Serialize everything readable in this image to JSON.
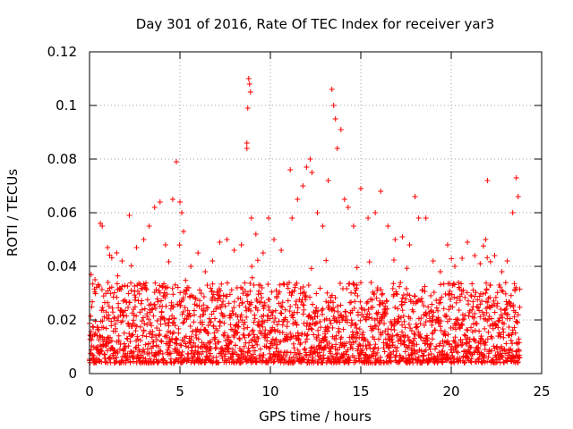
{
  "chart_data": {
    "type": "scatter",
    "title": "Day 301 of 2016, Rate Of TEC Index for receiver yar3",
    "xlabel": "GPS time / hours",
    "ylabel": "ROTI / TECUs",
    "xlim": [
      0,
      25
    ],
    "ylim": [
      0,
      0.12
    ],
    "xticks": [
      0,
      5,
      10,
      15,
      20,
      25
    ],
    "xtick_labels": [
      "0",
      "5",
      "10",
      "15",
      "20",
      "25"
    ],
    "yticks": [
      0,
      0.02,
      0.04,
      0.06,
      0.08,
      0.1,
      0.12
    ],
    "ytick_labels": [
      "0",
      "0.02",
      "0.04",
      "0.06",
      "0.08",
      "0.1",
      "0.12"
    ],
    "grid": true,
    "marker": "+",
    "color": "#ff0000",
    "series": [
      {
        "name": "ROTI",
        "note": "dense field of points mostly 0.003-0.035 TECUs across 0-23.8 h; notable excursions listed",
        "points": [
          [
            0.3,
            0.035
          ],
          [
            0.6,
            0.056
          ],
          [
            0.7,
            0.055
          ],
          [
            1.0,
            0.047
          ],
          [
            1.5,
            0.045
          ],
          [
            1.8,
            0.042
          ],
          [
            2.2,
            0.059
          ],
          [
            2.6,
            0.047
          ],
          [
            3.0,
            0.05
          ],
          [
            3.3,
            0.055
          ],
          [
            3.6,
            0.062
          ],
          [
            3.9,
            0.064
          ],
          [
            4.2,
            0.048
          ],
          [
            4.6,
            0.065
          ],
          [
            4.8,
            0.079
          ],
          [
            5.0,
            0.064
          ],
          [
            5.1,
            0.06
          ],
          [
            5.2,
            0.053
          ],
          [
            5.6,
            0.04
          ],
          [
            6.0,
            0.045
          ],
          [
            6.4,
            0.038
          ],
          [
            6.8,
            0.042
          ],
          [
            7.2,
            0.049
          ],
          [
            7.6,
            0.05
          ],
          [
            8.0,
            0.046
          ],
          [
            8.4,
            0.048
          ],
          [
            8.7,
            0.086
          ],
          [
            8.7,
            0.084
          ],
          [
            8.75,
            0.099
          ],
          [
            8.8,
            0.11
          ],
          [
            8.85,
            0.108
          ],
          [
            8.9,
            0.105
          ],
          [
            8.95,
            0.058
          ],
          [
            9.2,
            0.052
          ],
          [
            9.6,
            0.045
          ],
          [
            9.9,
            0.058
          ],
          [
            10.2,
            0.05
          ],
          [
            10.6,
            0.046
          ],
          [
            11.1,
            0.076
          ],
          [
            11.2,
            0.058
          ],
          [
            11.5,
            0.065
          ],
          [
            11.8,
            0.07
          ],
          [
            12.0,
            0.077
          ],
          [
            12.2,
            0.08
          ],
          [
            12.3,
            0.075
          ],
          [
            12.6,
            0.06
          ],
          [
            12.9,
            0.055
          ],
          [
            13.2,
            0.072
          ],
          [
            13.4,
            0.106
          ],
          [
            13.5,
            0.1
          ],
          [
            13.6,
            0.095
          ],
          [
            13.7,
            0.084
          ],
          [
            13.9,
            0.091
          ],
          [
            14.1,
            0.065
          ],
          [
            14.3,
            0.062
          ],
          [
            14.6,
            0.055
          ],
          [
            15.0,
            0.069
          ],
          [
            15.4,
            0.058
          ],
          [
            15.8,
            0.06
          ],
          [
            16.1,
            0.068
          ],
          [
            16.5,
            0.055
          ],
          [
            16.9,
            0.05
          ],
          [
            17.3,
            0.051
          ],
          [
            17.7,
            0.048
          ],
          [
            18.0,
            0.066
          ],
          [
            18.2,
            0.058
          ],
          [
            18.6,
            0.058
          ],
          [
            19.0,
            0.042
          ],
          [
            19.4,
            0.038
          ],
          [
            19.8,
            0.048
          ],
          [
            20.2,
            0.04
          ],
          [
            20.6,
            0.043
          ],
          [
            20.9,
            0.049
          ],
          [
            21.3,
            0.044
          ],
          [
            21.6,
            0.041
          ],
          [
            21.9,
            0.05
          ],
          [
            22.0,
            0.072
          ],
          [
            22.4,
            0.044
          ],
          [
            22.8,
            0.038
          ],
          [
            23.1,
            0.042
          ],
          [
            23.4,
            0.06
          ],
          [
            23.6,
            0.073
          ],
          [
            23.7,
            0.066
          ]
        ]
      }
    ]
  }
}
